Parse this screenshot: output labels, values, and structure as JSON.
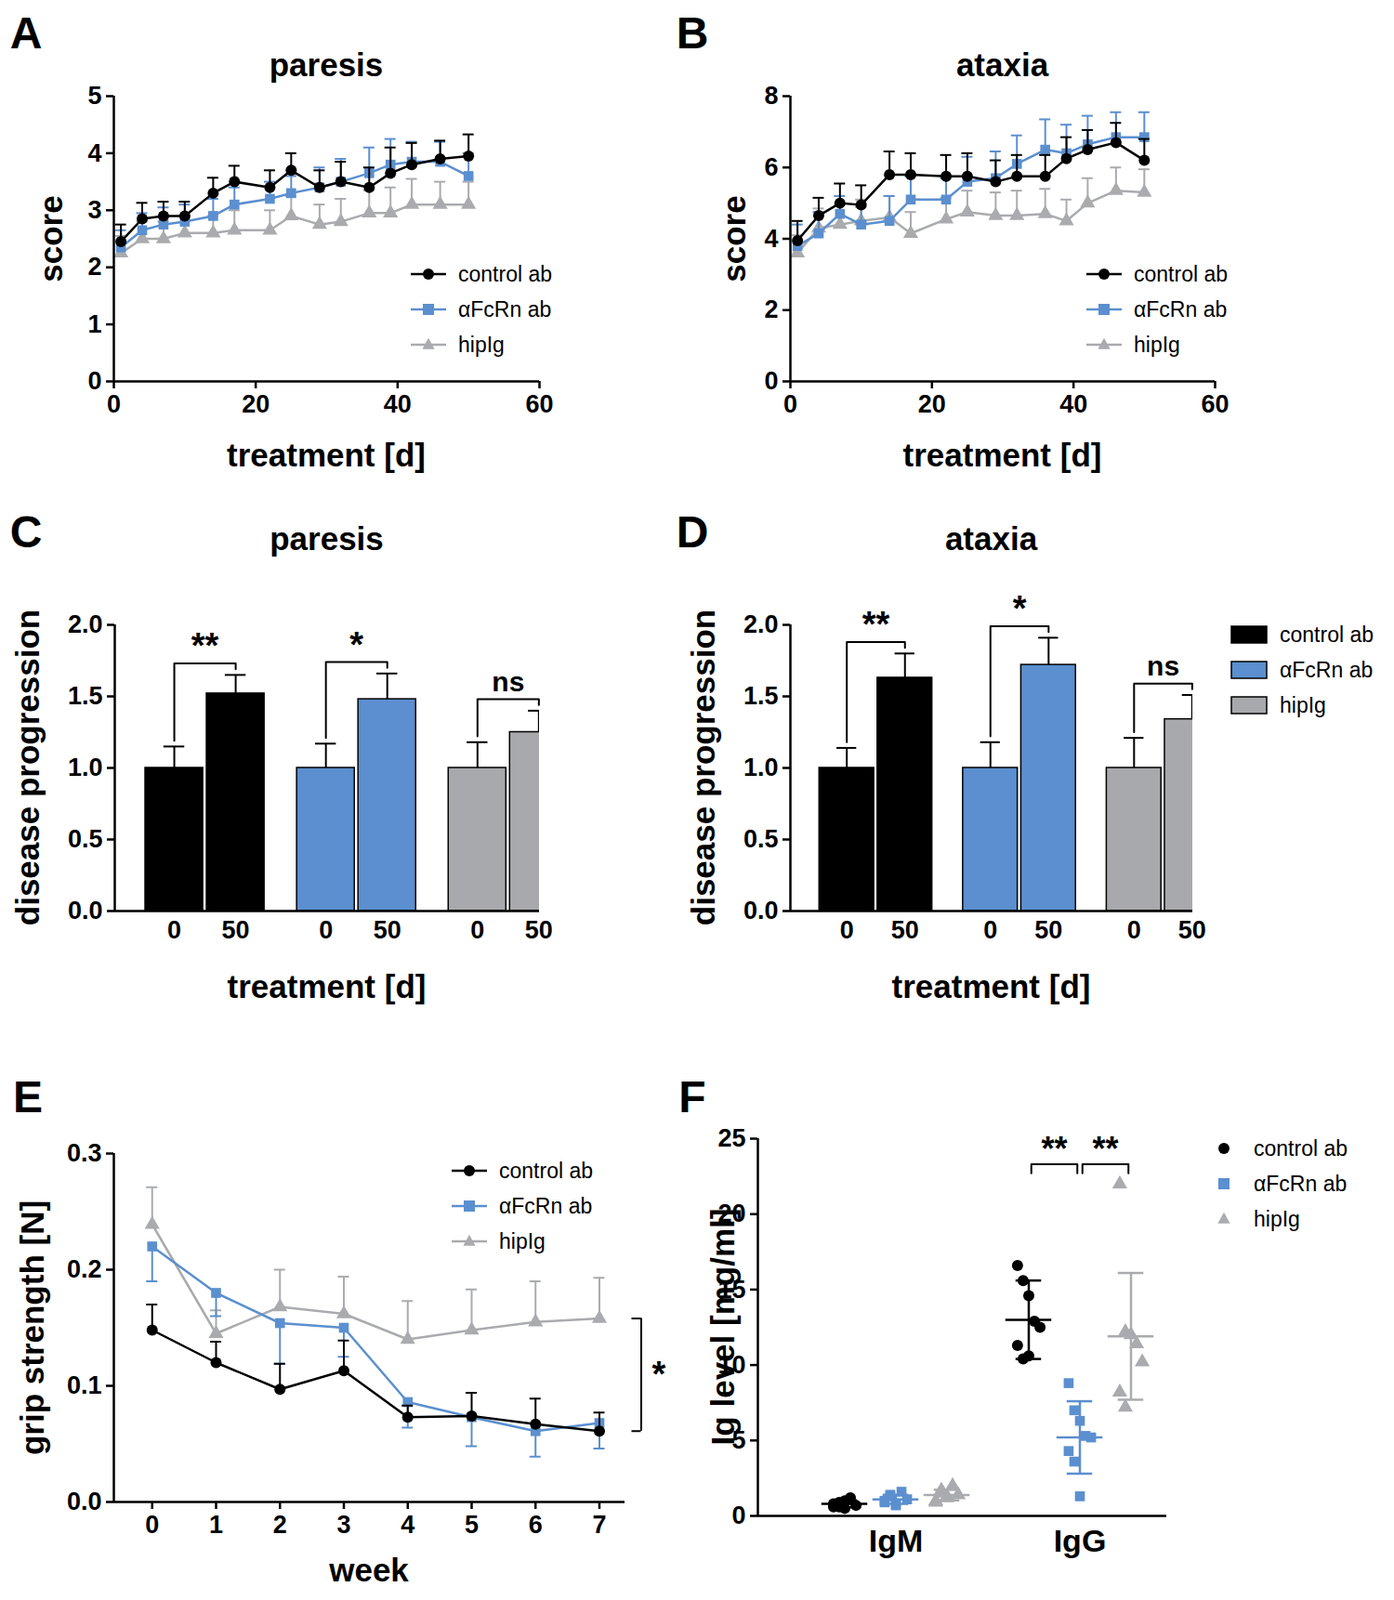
{
  "chart_data": [
    {
      "type": "line",
      "panel": "A",
      "title": "paresis",
      "x_label": "treatment [d]",
      "y_label": "score",
      "x": [
        1,
        4,
        7,
        10,
        14,
        17,
        22,
        25,
        29,
        32,
        36,
        39,
        42,
        46,
        50
      ],
      "xlim": [
        0,
        60
      ],
      "xticks": [
        0,
        20,
        40,
        60
      ],
      "ylim": [
        0,
        5
      ],
      "yticks": [
        0,
        1,
        2,
        3,
        4,
        5
      ],
      "legend": "bottom-right",
      "series": [
        {
          "name": "control ab",
          "color": "#000000",
          "marker": "circle",
          "values": [
            2.45,
            2.85,
            2.9,
            2.9,
            3.3,
            3.5,
            3.4,
            3.7,
            3.4,
            3.5,
            3.4,
            3.65,
            3.8,
            3.9,
            3.95
          ],
          "errors": [
            0.3,
            0.28,
            0.25,
            0.25,
            0.27,
            0.28,
            0.3,
            0.3,
            0.3,
            0.35,
            0.35,
            0.45,
            0.38,
            0.32,
            0.38
          ]
        },
        {
          "name": "αFcRn ab",
          "color": "#5b8fcf",
          "marker": "square",
          "values": [
            2.35,
            2.65,
            2.75,
            2.8,
            2.9,
            3.1,
            3.2,
            3.3,
            3.4,
            3.5,
            3.65,
            3.8,
            3.85,
            3.85,
            3.6
          ],
          "errors": [
            0.3,
            0.3,
            0.3,
            0.3,
            0.3,
            0.3,
            0.3,
            0.3,
            0.35,
            0.4,
            0.45,
            0.45,
            0.35,
            0.35,
            0.4
          ]
        },
        {
          "name": "hipIg",
          "color": "#a9abae",
          "marker": "triangle",
          "values": [
            2.25,
            2.5,
            2.5,
            2.6,
            2.6,
            2.65,
            2.65,
            2.9,
            2.75,
            2.8,
            2.95,
            2.95,
            3.1,
            3.1,
            3.1
          ],
          "errors": [
            0.3,
            0.3,
            0.3,
            0.3,
            0.3,
            0.35,
            0.35,
            0.35,
            0.35,
            0.4,
            0.4,
            0.45,
            0.45,
            0.4,
            0.4
          ]
        }
      ]
    },
    {
      "type": "line",
      "panel": "B",
      "title": "ataxia",
      "x_label": "treatment [d]",
      "y_label": "score",
      "x": [
        1,
        4,
        7,
        10,
        14,
        17,
        22,
        25,
        29,
        32,
        36,
        39,
        42,
        46,
        50
      ],
      "xlim": [
        0,
        60
      ],
      "xticks": [
        0,
        20,
        40,
        60
      ],
      "ylim": [
        0,
        8
      ],
      "yticks": [
        0,
        2,
        4,
        6,
        8
      ],
      "legend": "bottom-right",
      "series": [
        {
          "name": "control ab",
          "color": "#000000",
          "marker": "circle",
          "values": [
            3.95,
            4.65,
            5.0,
            4.95,
            5.8,
            5.8,
            5.75,
            5.75,
            5.6,
            5.75,
            5.75,
            6.25,
            6.5,
            6.7,
            6.2
          ],
          "errors": [
            0.55,
            0.5,
            0.55,
            0.55,
            0.65,
            0.6,
            0.6,
            0.65,
            0.6,
            0.6,
            0.6,
            0.6,
            0.55,
            0.55,
            0.6
          ]
        },
        {
          "name": "αFcRn ab",
          "color": "#5b8fcf",
          "marker": "square",
          "values": [
            3.8,
            4.15,
            4.7,
            4.4,
            4.5,
            5.1,
            5.1,
            5.6,
            5.7,
            6.1,
            6.5,
            6.4,
            6.65,
            6.85,
            6.85
          ],
          "errors": [
            0.6,
            0.6,
            0.5,
            0.5,
            0.7,
            0.65,
            0.6,
            0.7,
            0.75,
            0.8,
            0.85,
            0.8,
            0.8,
            0.7,
            0.7
          ]
        },
        {
          "name": "hipIg",
          "color": "#a9abae",
          "marker": "triangle",
          "values": [
            3.6,
            4.3,
            4.4,
            4.5,
            4.6,
            4.15,
            4.55,
            4.75,
            4.65,
            4.65,
            4.7,
            4.5,
            5.0,
            5.35,
            5.3
          ],
          "errors": [
            0.5,
            0.55,
            0.55,
            0.6,
            0.6,
            0.6,
            0.6,
            0.6,
            0.65,
            0.7,
            0.7,
            0.6,
            0.7,
            0.65,
            0.65
          ]
        }
      ]
    },
    {
      "type": "bar",
      "panel": "C",
      "title": "paresis",
      "x_label": "treatment [d]",
      "y_label": "disease progression",
      "categories": [
        "0",
        "50"
      ],
      "ylim": [
        0,
        2
      ],
      "yticks": [
        {
          "value": 0,
          "label": "0.0"
        },
        {
          "value": 0.5,
          "label": "0.5"
        },
        {
          "value": 1,
          "label": "1.0"
        },
        {
          "value": 1.5,
          "label": "1.5"
        },
        {
          "value": 2,
          "label": "2.0"
        }
      ],
      "series": [
        {
          "name": "control ab",
          "color": "#000000",
          "values": [
            1.0,
            1.52
          ],
          "errors": [
            0.15,
            0.13
          ]
        },
        {
          "name": "αFcRn ab",
          "color": "#5b8fcf",
          "values": [
            1.0,
            1.48
          ],
          "errors": [
            0.17,
            0.18
          ]
        },
        {
          "name": "hipIg",
          "color": "#a7a9ac",
          "values": [
            1.0,
            1.25
          ],
          "errors": [
            0.18,
            0.15
          ]
        }
      ],
      "annotations": [
        {
          "text": "**",
          "series": "control ab"
        },
        {
          "text": "*",
          "series": "αFcRn ab"
        },
        {
          "text": "ns",
          "series": "hipIg"
        }
      ]
    },
    {
      "type": "bar",
      "panel": "D",
      "title": "ataxia",
      "x_label": "treatment [d]",
      "y_label": "disease progression",
      "categories": [
        "0",
        "50"
      ],
      "ylim": [
        0,
        2
      ],
      "yticks": [
        {
          "value": 0,
          "label": "0.0"
        },
        {
          "value": 0.5,
          "label": "0.5"
        },
        {
          "value": 1,
          "label": "1.0"
        },
        {
          "value": 1.5,
          "label": "1.5"
        },
        {
          "value": 2,
          "label": "2.0"
        }
      ],
      "legend": "right",
      "series": [
        {
          "name": "control ab",
          "color": "#000000",
          "values": [
            1.0,
            1.63
          ],
          "errors": [
            0.14,
            0.17
          ]
        },
        {
          "name": "αFcRn ab",
          "color": "#5b8fcf",
          "values": [
            1.0,
            1.72
          ],
          "errors": [
            0.18,
            0.19
          ]
        },
        {
          "name": "hipIg",
          "color": "#a7a9ac",
          "values": [
            1.0,
            1.34
          ],
          "errors": [
            0.21,
            0.17
          ]
        }
      ],
      "annotations": [
        {
          "text": "**",
          "series": "control ab"
        },
        {
          "text": "*",
          "series": "αFcRn ab"
        },
        {
          "text": "ns",
          "series": "hipIg"
        }
      ]
    },
    {
      "type": "line",
      "panel": "E",
      "x_label": "week",
      "y_label": "grip strength [N]",
      "x": [
        0,
        1,
        2,
        3,
        4,
        5,
        6,
        7
      ],
      "xlim": [
        -0.6,
        7.4
      ],
      "xticks": [
        0,
        1,
        2,
        3,
        4,
        5,
        6,
        7
      ],
      "ylim": [
        0,
        0.3
      ],
      "yticks": [
        {
          "value": 0,
          "label": "0.0"
        },
        0.1,
        0.2,
        0.3
      ],
      "legend": "top-right",
      "series": [
        {
          "name": "control ab",
          "color": "#000000",
          "marker": "circle",
          "values": [
            0.148,
            0.12,
            0.097,
            0.113,
            0.073,
            0.074,
            0.067,
            0.061
          ],
          "errors": [
            0.022,
            0.018,
            0.022,
            0.026,
            0.01,
            0.02,
            0.022,
            0.016
          ]
        },
        {
          "name": "αFcRn ab",
          "color": "#5b8fcf",
          "marker": "square",
          "values": [
            0.22,
            0.18,
            0.154,
            0.15,
            0.086,
            0.073,
            0.061,
            0.068
          ],
          "errors_down": [
            0.03,
            0.02,
            0.035,
            0.025,
            0.022,
            0.025,
            0.022,
            0.022
          ]
        },
        {
          "name": "hipIg",
          "color": "#a9abae",
          "marker": "triangle",
          "values": [
            0.239,
            0.145,
            0.168,
            0.162,
            0.14,
            0.148,
            0.155,
            0.158
          ],
          "errors": [
            0.032,
            0.02,
            0.032,
            0.032,
            0.033,
            0.035,
            0.035,
            0.035
          ]
        }
      ],
      "annotations": [
        {
          "text": "*",
          "between": [
            "control ab",
            "hipIg"
          ]
        }
      ]
    },
    {
      "type": "scatter",
      "panel": "F",
      "y_label": "Ig level [mg/ml]",
      "categories": [
        "IgM",
        "IgG"
      ],
      "ylim": [
        0,
        25
      ],
      "yticks": [
        0,
        5,
        10,
        15,
        20,
        25
      ],
      "legend": "right",
      "series": [
        {
          "name": "control ab",
          "color": "#000000",
          "marker": "circle",
          "values": [
            [
              0.6,
              0.9,
              0.5,
              1.2,
              0.7,
              0.8,
              0.6,
              1.0
            ],
            [
              16.6,
              15.6,
              14.6,
              12.9,
              12.5,
              11.3,
              10.4,
              10.6
            ]
          ],
          "means": [
            0.8,
            13.0
          ],
          "sds": [
            0.23,
            2.6
          ]
        },
        {
          "name": "αFcRn ab",
          "color": "#5b8fcf",
          "marker": "square",
          "values": [
            [
              0.9,
              1.4,
              0.8,
              1.6,
              1.1,
              1.0,
              1.3,
              0.7
            ],
            [
              8.8,
              7.0,
              6.3,
              5.3,
              5.2,
              4.3,
              3.6,
              1.3
            ]
          ],
          "means": [
            1.1,
            5.2
          ],
          "sds": [
            0.3,
            2.4
          ]
        },
        {
          "name": "hipIg",
          "color": "#a9abae",
          "marker": "triangle",
          "values": [
            [
              1.0,
              1.7,
              1.2,
              2.0,
              1.4,
              0.9,
              1.5,
              1.3
            ],
            [
              22.0,
              12.2,
              12.0,
              11.4,
              10.2,
              8.2,
              7.2
            ]
          ],
          "means": [
            1.38,
            11.9
          ],
          "sds": [
            0.35,
            4.2
          ]
        }
      ],
      "annotations": [
        {
          "text": "**",
          "category": "IgG",
          "between": [
            "control ab",
            "αFcRn ab"
          ]
        },
        {
          "text": "**",
          "category": "IgG",
          "between": [
            "αFcRn ab",
            "hipIg"
          ]
        }
      ]
    }
  ]
}
